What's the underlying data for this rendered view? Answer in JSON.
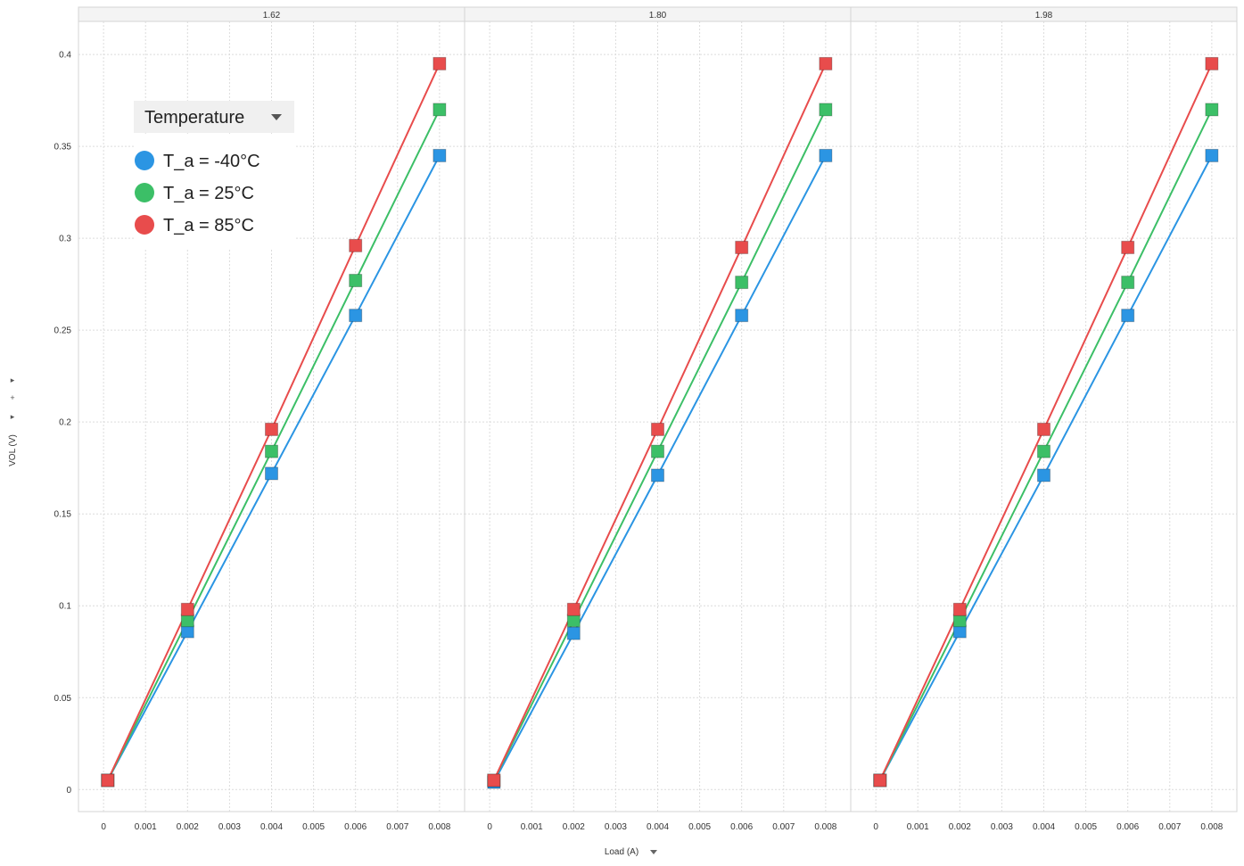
{
  "chart_data": {
    "type": "line",
    "panel_variable": "",
    "panels": [
      "1.62",
      "1.80",
      "1.98"
    ],
    "xlabel": "Load (A)",
    "ylabel": "VOL (V)",
    "xlim": [
      -0.0003,
      0.0083
    ],
    "ylim": [
      -0.012,
      0.418
    ],
    "x_ticks": [
      0,
      0.001,
      0.002,
      0.003,
      0.004,
      0.005,
      0.006,
      0.007,
      0.008
    ],
    "x_tick_labels": [
      "0",
      "0.001",
      "0.002",
      "0.003",
      "0.004",
      "0.005",
      "0.006",
      "0.007",
      "0.008"
    ],
    "y_ticks": [
      0,
      0.05,
      0.1,
      0.15,
      0.2,
      0.25,
      0.3,
      0.35,
      0.4
    ],
    "y_tick_labels": [
      "0",
      "0.05",
      "0.1",
      "0.15",
      "0.2",
      "0.25",
      "0.3",
      "0.35",
      "0.4"
    ],
    "grid": true,
    "legend": {
      "title": "Temperature",
      "position": "top-left"
    },
    "x": [
      0.0001,
      0.002,
      0.004,
      0.006,
      0.008
    ],
    "series": [
      {
        "name": "T_a = -40°C",
        "color": "#2b95e3",
        "values_by_panel": [
          [
            0.005,
            0.086,
            0.172,
            0.258,
            0.345
          ],
          [
            0.004,
            0.085,
            0.171,
            0.258,
            0.345
          ],
          [
            0.005,
            0.086,
            0.171,
            0.258,
            0.345
          ]
        ]
      },
      {
        "name": "T_a = 25°C",
        "color": "#3cbf67",
        "values_by_panel": [
          [
            0.005,
            0.092,
            0.184,
            0.277,
            0.37
          ],
          [
            0.005,
            0.092,
            0.184,
            0.276,
            0.37
          ],
          [
            0.005,
            0.092,
            0.184,
            0.276,
            0.37
          ]
        ]
      },
      {
        "name": "T_a = 85°C",
        "color": "#e84c4c",
        "values_by_panel": [
          [
            0.005,
            0.098,
            0.196,
            0.296,
            0.395
          ],
          [
            0.005,
            0.098,
            0.196,
            0.295,
            0.395
          ],
          [
            0.005,
            0.098,
            0.196,
            0.295,
            0.395
          ]
        ]
      }
    ]
  },
  "controls": {
    "xlabel_dropdown_icon": "caret-down-icon",
    "legend_dropdown_icon": "caret-down-icon",
    "side_controls": [
      "expand-icon",
      "add-icon",
      "expand-icon"
    ]
  }
}
